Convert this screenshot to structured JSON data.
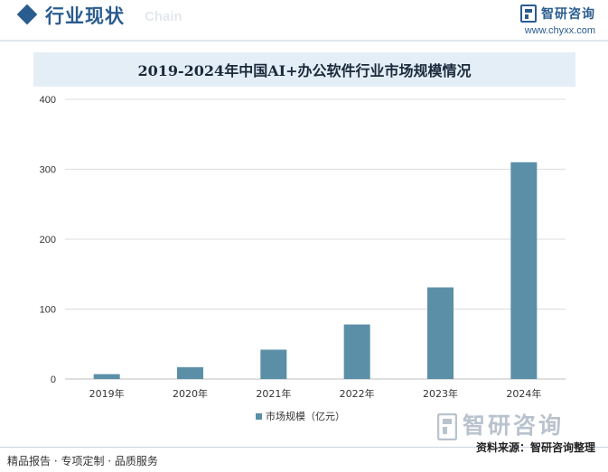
{
  "header": {
    "title": "行业现状",
    "subtitle": "Chain"
  },
  "brand": {
    "name": "智研咨询",
    "url": "www.chyxx.com"
  },
  "footer": {
    "left_text": "精品报告 · 专项定制 · 品质服务",
    "watermark": "智研咨询",
    "source": "资料来源：智研咨询整理"
  },
  "colors": {
    "bar": "#5b8fa8",
    "brand": "#2a5c8f",
    "title_bg": "#e4eef7"
  },
  "chart_data": {
    "type": "bar",
    "title": "2019-2024年中国AI+办公软件行业市场规模情况",
    "categories": [
      "2019年",
      "2020年",
      "2021年",
      "2022年",
      "2023年",
      "2024年"
    ],
    "series": [
      {
        "name": "市场规模（亿元）",
        "values": [
          7,
          17,
          42,
          78,
          131,
          310
        ]
      }
    ],
    "ylim": [
      0,
      400
    ],
    "yticks": [
      0,
      100,
      200,
      300,
      400
    ],
    "grid": true,
    "legend": "bottom"
  }
}
